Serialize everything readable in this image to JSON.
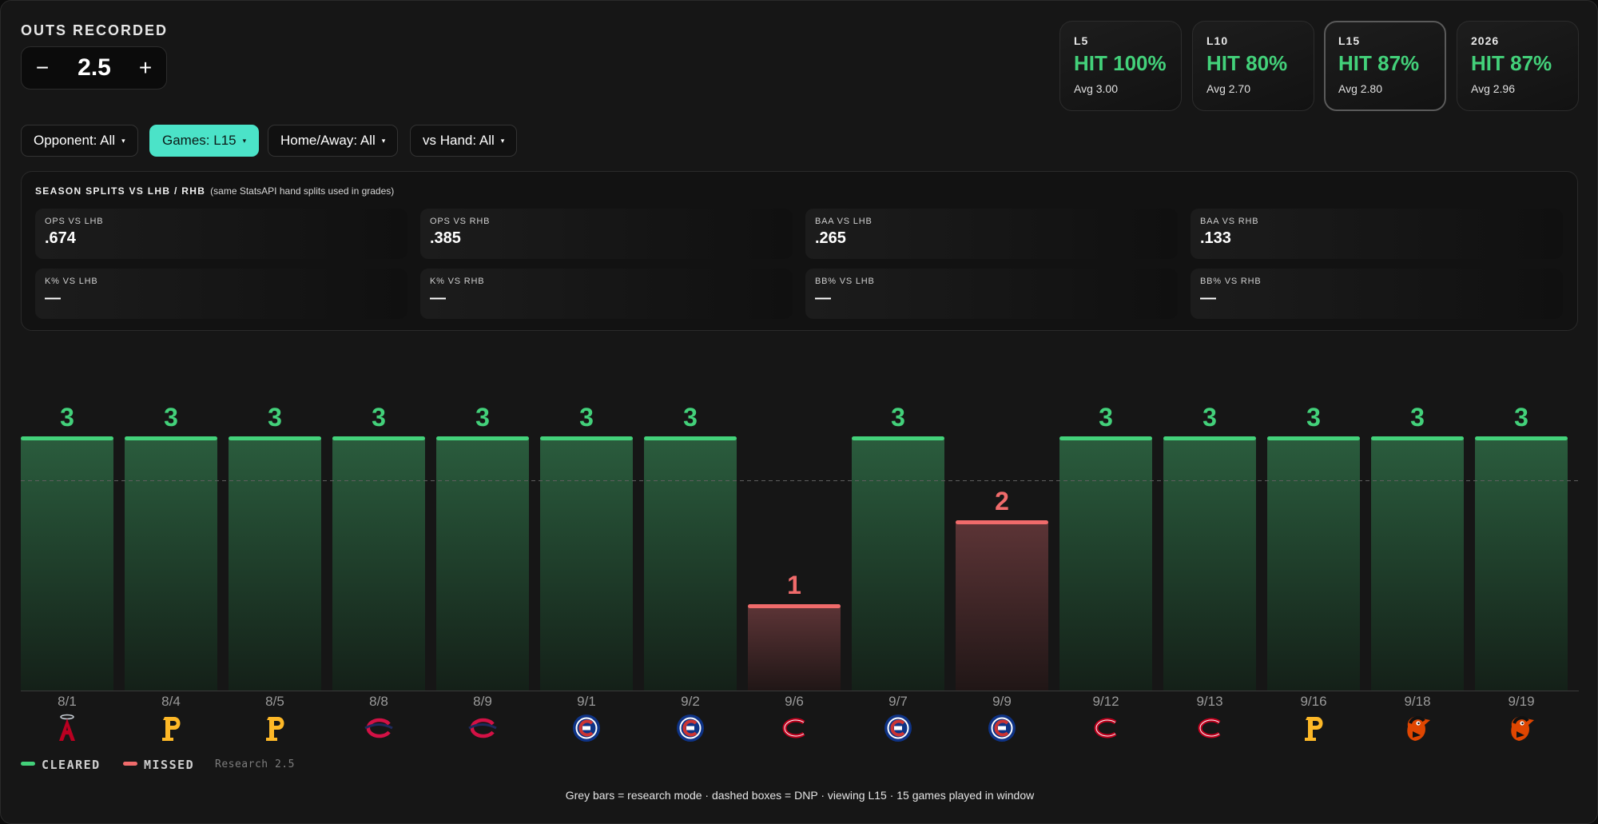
{
  "metric": {
    "label": "OUTS RECORDED"
  },
  "stepper": {
    "value": "2.5",
    "minus": "−",
    "plus": "+"
  },
  "hit_cards": [
    {
      "window": "L5",
      "pct": "HIT 100%",
      "avg": "Avg 3.00",
      "active": false
    },
    {
      "window": "L10",
      "pct": "HIT 80%",
      "avg": "Avg 2.70",
      "active": false
    },
    {
      "window": "L15",
      "pct": "HIT 87%",
      "avg": "Avg 2.80",
      "active": true
    },
    {
      "window": "2026",
      "pct": "HIT 87%",
      "avg": "Avg 2.96",
      "active": false
    }
  ],
  "filters": [
    {
      "label": "Opponent: All",
      "active": false
    },
    {
      "label": "Games: L15",
      "active": true
    },
    {
      "label": "Home/Away: All",
      "active": false
    },
    {
      "label": "vs Hand: All",
      "active": false
    }
  ],
  "splits": {
    "title": "SEASON SPLITS VS LHB / RHB",
    "subtitle": "(same StatsAPI hand splits used in grades)",
    "stats": [
      {
        "label": "OPS VS LHB",
        "value": ".674"
      },
      {
        "label": "OPS VS RHB",
        "value": ".385"
      },
      {
        "label": "BAA VS LHB",
        "value": ".265"
      },
      {
        "label": "BAA VS RHB",
        "value": ".133"
      },
      {
        "label": "K% VS LHB",
        "value": "—"
      },
      {
        "label": "K% VS RHB",
        "value": "—"
      },
      {
        "label": "BB% VS LHB",
        "value": "—"
      },
      {
        "label": "BB% VS RHB",
        "value": "—"
      }
    ]
  },
  "chart_data": {
    "type": "bar",
    "categories": [
      "8/1",
      "8/4",
      "8/5",
      "8/8",
      "8/9",
      "9/1",
      "9/2",
      "9/6",
      "9/7",
      "9/9",
      "9/12",
      "9/13",
      "9/16",
      "9/18",
      "9/19"
    ],
    "values": [
      3,
      3,
      3,
      3,
      3,
      3,
      3,
      1,
      3,
      2,
      3,
      3,
      3,
      3,
      3
    ],
    "opponents": [
      "angels",
      "pirates",
      "pirates",
      "twins",
      "twins",
      "cubs",
      "cubs",
      "reds",
      "cubs",
      "cubs",
      "reds",
      "reds",
      "pirates",
      "orioles",
      "orioles"
    ],
    "line": 2.5,
    "ylim": [
      0,
      3.5
    ],
    "colors": {
      "cleared": "#43d17a",
      "missed": "#f06b6b"
    },
    "title": "",
    "xlabel": "",
    "ylabel": ""
  },
  "legend": {
    "cleared": "CLEARED",
    "missed": "MISSED",
    "note": "Research 2.5"
  },
  "footer": {
    "text": "Grey bars = research mode · dashed boxes = DNP · viewing L15 · 15 games played in window"
  }
}
